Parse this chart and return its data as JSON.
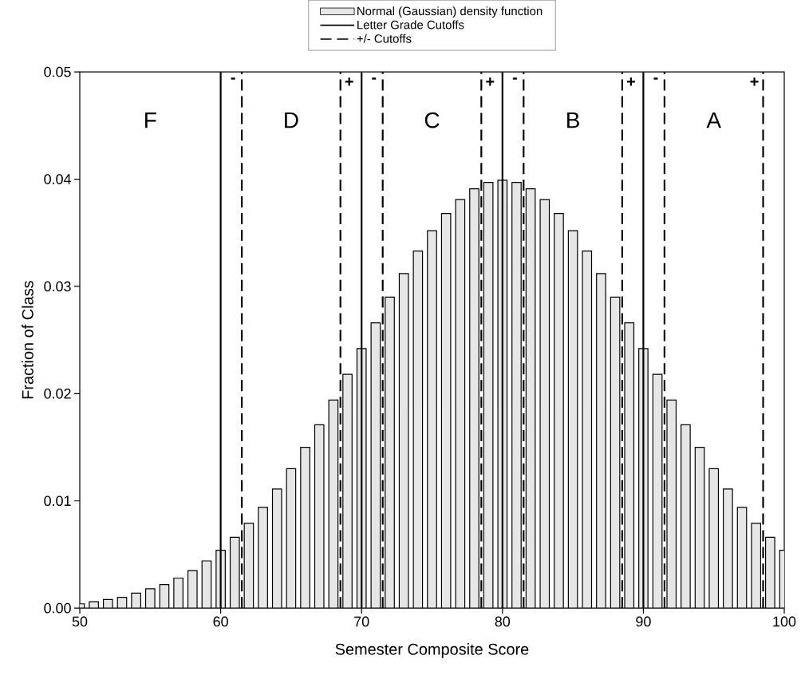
{
  "chart_data": {
    "type": "bar",
    "xlabel": "Semester Composite Score",
    "ylabel": "Fraction of Class",
    "xlim": [
      50,
      100
    ],
    "xticks": [
      50,
      60,
      70,
      80,
      90,
      100
    ],
    "ylim": [
      0,
      0.05
    ],
    "yticks": [
      {
        "value": 0,
        "label": "0.00"
      },
      0.01,
      0.02,
      0.03,
      0.04,
      0.05
    ],
    "legend": "top",
    "marker": "none",
    "x": [
      50,
      51,
      52,
      53,
      54,
      55,
      56,
      57,
      58,
      59,
      60,
      61,
      62,
      63,
      64,
      65,
      66,
      67,
      68,
      69,
      70,
      71,
      72,
      73,
      74,
      75,
      76,
      77,
      78,
      79,
      80,
      81,
      82,
      83,
      84,
      85,
      86,
      87,
      88,
      89,
      90,
      91,
      92,
      93,
      94,
      95,
      96,
      97,
      98,
      99,
      100
    ],
    "series": [
      {
        "name": "Normal (Gaussian) density function",
        "color": "#e6e6e6",
        "values": [
          0.0004,
          0.0006,
          0.0008,
          0.001,
          0.0014,
          0.0018,
          0.0022,
          0.0028,
          0.0035,
          0.0044,
          0.0054,
          0.0066,
          0.0079,
          0.0094,
          0.0111,
          0.013,
          0.015,
          0.0171,
          0.0194,
          0.0218,
          0.0242,
          0.0266,
          0.029,
          0.0312,
          0.0333,
          0.0352,
          0.0368,
          0.0381,
          0.0391,
          0.0397,
          0.0399,
          0.0397,
          0.0391,
          0.0381,
          0.0368,
          0.0352,
          0.0333,
          0.0312,
          0.029,
          0.0266,
          0.0242,
          0.0218,
          0.0194,
          0.0171,
          0.015,
          0.013,
          0.0111,
          0.0094,
          0.0079,
          0.0066,
          0.0054
        ]
      }
    ],
    "ref_lines": [
      {
        "axis": "x",
        "value": 60,
        "color": "#000000",
        "line_style": "solid"
      },
      {
        "axis": "x",
        "value": 70,
        "color": "#000000",
        "line_style": "solid"
      },
      {
        "axis": "x",
        "value": 80,
        "color": "#000000",
        "line_style": "solid"
      },
      {
        "axis": "x",
        "value": 90,
        "color": "#000000",
        "line_style": "solid"
      },
      {
        "axis": "x",
        "value": 61.5,
        "label": "-",
        "color": "#000000",
        "line_style": "dashed"
      },
      {
        "axis": "x",
        "value": 68.5,
        "label": "+",
        "color": "#000000",
        "line_style": "dashed"
      },
      {
        "axis": "x",
        "value": 71.5,
        "label": "-",
        "color": "#000000",
        "line_style": "dashed"
      },
      {
        "axis": "x",
        "value": 78.5,
        "label": "+",
        "color": "#000000",
        "line_style": "dashed"
      },
      {
        "axis": "x",
        "value": 81.5,
        "label": "-",
        "color": "#000000",
        "line_style": "dashed"
      },
      {
        "axis": "x",
        "value": 88.5,
        "label": "+",
        "color": "#000000",
        "line_style": "dashed"
      },
      {
        "axis": "x",
        "value": 91.5,
        "label": "-",
        "color": "#000000",
        "line_style": "dashed"
      },
      {
        "axis": "x",
        "value": 98.5,
        "label": "+",
        "color": "#000000",
        "line_style": "dashed"
      }
    ],
    "annotations": [
      "Letter Grade Cutoffs",
      "+/- Cutoffs",
      {
        "text": "F",
        "x": 55,
        "y": 0.0455
      },
      {
        "text": "D",
        "x": 65,
        "y": 0.0455
      },
      {
        "text": "C",
        "x": 75,
        "y": 0.0455
      },
      {
        "text": "B",
        "x": 85,
        "y": 0.0455
      },
      {
        "text": "A",
        "x": 95,
        "y": 0.0455
      }
    ]
  }
}
